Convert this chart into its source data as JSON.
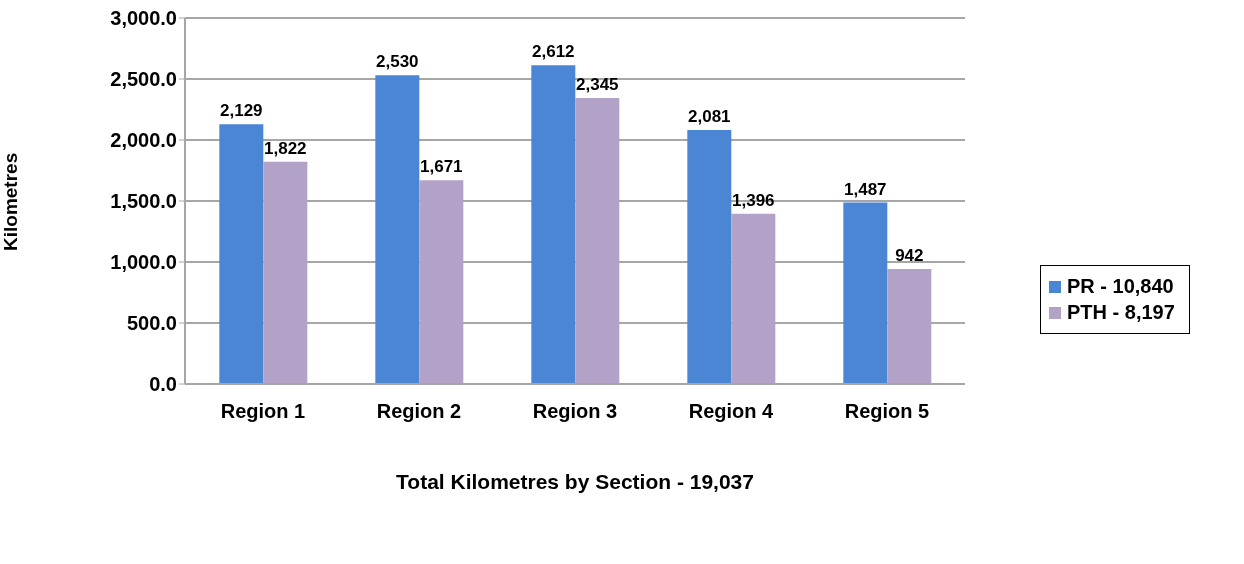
{
  "chart_data": {
    "type": "bar",
    "xlabel": "Total Kilometres by Section - 19,037",
    "ylabel": "Kilometres",
    "categories": [
      "Region 1",
      "Region 2",
      "Region 3",
      "Region 4",
      "Region 5"
    ],
    "series": [
      {
        "name": "PR - 10,840",
        "color": "#4a86d4",
        "values": [
          2129,
          2530,
          2612,
          2081,
          1487
        ],
        "value_labels": [
          "2,129",
          "2,530",
          "2,612",
          "2,081",
          "1,487"
        ]
      },
      {
        "name": "PTH - 8,197",
        "color": "#b3a2c7",
        "values": [
          1822,
          1671,
          2345,
          1396,
          942
        ],
        "value_labels": [
          "1,822",
          "1,671",
          "2,345",
          "1,396",
          "942"
        ]
      }
    ],
    "ylim": [
      0,
      3000
    ],
    "yticks": [
      {
        "value": 0,
        "label": "0.0"
      },
      {
        "value": 500,
        "label": "500.0"
      },
      {
        "value": 1000,
        "label": "1,000.0"
      },
      {
        "value": 1500,
        "label": "1,500.0"
      },
      {
        "value": 2000,
        "label": "2,000.0"
      },
      {
        "value": 2500,
        "label": "2,500.0"
      },
      {
        "value": 3000,
        "label": "3,000.0"
      }
    ],
    "grid": "y",
    "legend": "right"
  }
}
